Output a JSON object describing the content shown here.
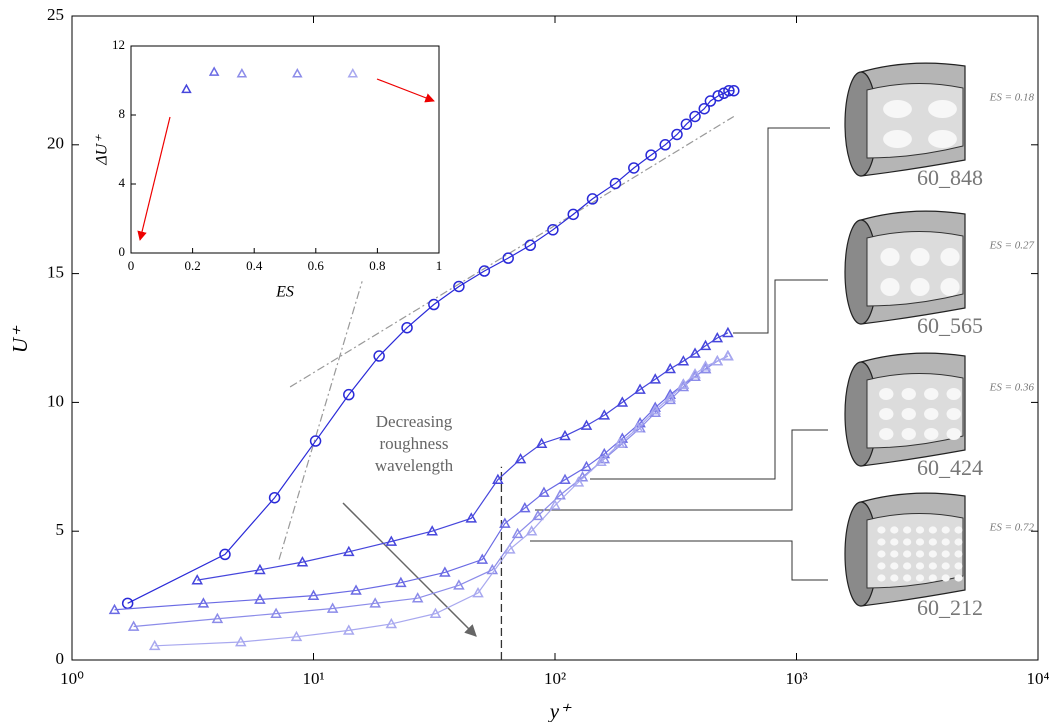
{
  "chart_data": {
    "type": "line",
    "xscale": "log",
    "x_label": "y⁺",
    "y_label": "U⁺",
    "xlim": [
      1,
      10000
    ],
    "ylim": [
      0,
      25
    ],
    "xticks": [
      {
        "value": 1,
        "label": "10⁰"
      },
      {
        "value": 10,
        "label": "10¹"
      },
      {
        "value": 100,
        "label": "10²"
      },
      {
        "value": 1000,
        "label": "10³"
      },
      {
        "value": 10000,
        "label": "10⁴"
      }
    ],
    "yticks": [
      0,
      5,
      10,
      15,
      20,
      25
    ],
    "series": [
      {
        "color": "#2a2ad8",
        "marker": "circle",
        "x": [
          1.7,
          4.3,
          6.9,
          10.2,
          14,
          18.7,
          24.4,
          31.5,
          40,
          51,
          64,
          79,
          98,
          119,
          143,
          178,
          212,
          250,
          286,
          320,
          350,
          380,
          415,
          440,
          474,
          500,
          525,
          550
        ],
        "values": [
          2.2,
          4.1,
          6.3,
          8.5,
          10.3,
          11.8,
          12.9,
          13.8,
          14.5,
          15.1,
          15.6,
          16.1,
          16.7,
          17.3,
          17.9,
          18.5,
          19.1,
          19.6,
          20.0,
          20.4,
          20.8,
          21.1,
          21.4,
          21.7,
          21.9,
          22.0,
          22.1,
          22.1
        ]
      },
      {
        "color": "#4646dc",
        "marker": "triangle",
        "x": [
          3.3,
          6,
          9,
          14,
          21,
          31,
          45,
          58,
          72,
          88,
          110,
          135,
          160,
          190,
          225,
          260,
          300,
          340,
          380,
          420,
          470,
          520
        ],
        "values": [
          3.1,
          3.5,
          3.8,
          4.2,
          4.6,
          5.0,
          5.5,
          7.0,
          7.8,
          8.4,
          8.7,
          9.1,
          9.5,
          10.0,
          10.5,
          10.9,
          11.3,
          11.6,
          11.9,
          12.2,
          12.5,
          12.7
        ]
      },
      {
        "color": "#6a6ae4",
        "marker": "triangle",
        "x": [
          1.5,
          3.5,
          6,
          10,
          15,
          23,
          35,
          50,
          62,
          75,
          90,
          110,
          135,
          160,
          190,
          225,
          260,
          300,
          340,
          380,
          420,
          470,
          520
        ],
        "values": [
          1.95,
          2.2,
          2.35,
          2.5,
          2.7,
          3.0,
          3.4,
          3.9,
          5.3,
          5.9,
          6.5,
          7.0,
          7.5,
          8.0,
          8.6,
          9.2,
          9.8,
          10.3,
          10.7,
          11.0,
          11.3,
          11.6,
          11.8
        ]
      },
      {
        "color": "#8c8ce9",
        "marker": "triangle",
        "x": [
          1.8,
          4,
          7,
          12,
          18,
          27,
          40,
          55,
          70,
          85,
          105,
          130,
          160,
          190,
          225,
          260,
          300,
          340,
          380,
          420,
          470,
          520
        ],
        "values": [
          1.3,
          1.6,
          1.8,
          2.0,
          2.2,
          2.4,
          2.9,
          3.5,
          4.9,
          5.6,
          6.4,
          7.1,
          7.8,
          8.4,
          9.0,
          9.6,
          10.1,
          10.6,
          11.0,
          11.3,
          11.6,
          11.8
        ]
      },
      {
        "color": "#a8a8ef",
        "marker": "triangle",
        "x": [
          2.2,
          5,
          8.5,
          14,
          21,
          32,
          48,
          65,
          80,
          100,
          125,
          155,
          185,
          220,
          260,
          300,
          340,
          380,
          420,
          470,
          520
        ],
        "values": [
          0.55,
          0.7,
          0.9,
          1.15,
          1.4,
          1.8,
          2.6,
          4.3,
          5.0,
          6.0,
          6.9,
          7.7,
          8.4,
          9.0,
          9.7,
          10.2,
          10.7,
          11.1,
          11.4,
          11.6,
          11.8
        ]
      }
    ],
    "reference_lines": [
      {
        "color": "#999999",
        "x": [
          7.2,
          15.9
        ],
        "values": [
          3.9,
          14.7
        ]
      },
      {
        "color": "#999999",
        "x": [
          8,
          550
        ],
        "values": [
          10.6,
          21.1
        ]
      }
    ],
    "vertical_line": {
      "x": 60,
      "y": [
        0,
        7.5
      ]
    },
    "annotation": [
      "Decreasing",
      "roughness",
      "wavelength"
    ],
    "pipes": [
      {
        "label": "60_848",
        "es_label": "ES = 0.18"
      },
      {
        "label": "60_565",
        "es_label": "ES = 0.27"
      },
      {
        "label": "60_424",
        "es_label": "ES = 0.36"
      },
      {
        "label": "60_212",
        "es_label": "ES = 0.72"
      }
    ],
    "inset": {
      "type": "scatter",
      "x_label": "ES",
      "y_label": "ΔU⁺",
      "xlim": [
        0,
        1
      ],
      "ylim": [
        0,
        12
      ],
      "xticks": [
        0,
        0.2,
        0.4,
        0.6,
        0.8,
        1
      ],
      "yticks": [
        0,
        4,
        8,
        12
      ],
      "x": [
        0.18,
        0.27,
        0.36,
        0.54,
        0.72
      ],
      "values": [
        9.5,
        10.5,
        10.4,
        10.4,
        10.4
      ],
      "colors": [
        "#4646dc",
        "#6a6ae4",
        "#8c8ce9",
        "#8c8ce9",
        "#a8a8ef"
      ]
    }
  }
}
